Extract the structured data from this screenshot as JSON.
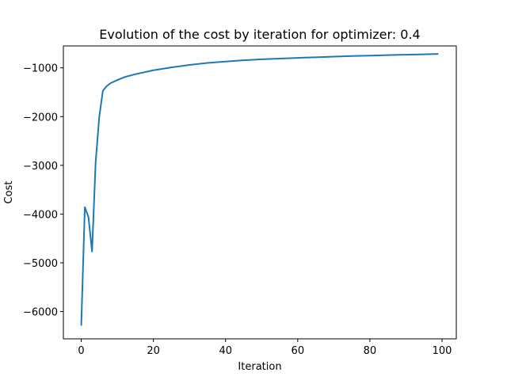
{
  "chart_data": {
    "type": "line",
    "title": "Evolution of the cost by iteration for optimizer: 0.4",
    "xlabel": "Iteration",
    "ylabel": "Cost",
    "xlim": [
      -4.95,
      103.95
    ],
    "ylim": [
      -6560,
      -550
    ],
    "xticks": [
      0,
      20,
      40,
      60,
      80,
      100
    ],
    "yticks": [
      -6000,
      -5000,
      -4000,
      -3000,
      -2000,
      -1000
    ],
    "grid": false,
    "legend": "none",
    "series": [
      {
        "color": "#1f77b4",
        "x": [
          0,
          1,
          2,
          3,
          4,
          5,
          6,
          7,
          8,
          10,
          12,
          15,
          20,
          25,
          30,
          35,
          40,
          45,
          50,
          55,
          60,
          65,
          70,
          75,
          80,
          85,
          90,
          95,
          99
        ],
        "y": [
          -6290,
          -3860,
          -4060,
          -4770,
          -2930,
          -2000,
          -1470,
          -1380,
          -1320,
          -1250,
          -1190,
          -1130,
          -1050,
          -990,
          -940,
          -900,
          -870,
          -845,
          -825,
          -810,
          -795,
          -783,
          -770,
          -758,
          -748,
          -738,
          -730,
          -722,
          -715
        ]
      }
    ]
  }
}
